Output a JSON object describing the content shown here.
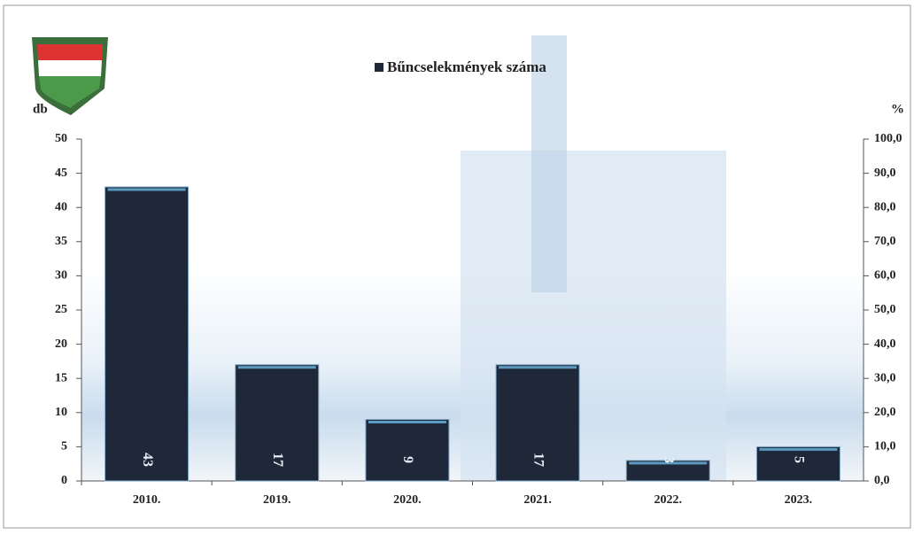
{
  "chart_data": {
    "type": "bar",
    "y_label": "db",
    "y2_label": "%",
    "categories": [
      "2010.",
      "2019.",
      "2020.",
      "2021.",
      "2022.",
      "2023."
    ],
    "series": [
      {
        "name": "Bűncselekmények száma",
        "color": "#1e2838",
        "values": [
          43,
          17,
          9,
          17,
          3,
          5
        ]
      }
    ],
    "ylim": [
      0,
      50
    ],
    "yticks": [
      0,
      5,
      10,
      15,
      20,
      25,
      30,
      35,
      40,
      45,
      50
    ],
    "y2lim": [
      0,
      100
    ],
    "y2ticks": [
      {
        "value": 0,
        "label": "0,0"
      },
      {
        "value": 10,
        "label": "10,0"
      },
      {
        "value": 20,
        "label": "20,0"
      },
      {
        "value": 30,
        "label": "30,0"
      },
      {
        "value": 40,
        "label": "40,0"
      },
      {
        "value": 50,
        "label": "50,0"
      },
      {
        "value": 60,
        "label": "60,0"
      },
      {
        "value": 70,
        "label": "70,0"
      },
      {
        "value": 80,
        "label": "80,0"
      },
      {
        "value": 90,
        "label": "90,0"
      },
      {
        "value": 100,
        "label": "100,0"
      }
    ],
    "grid": false
  }
}
